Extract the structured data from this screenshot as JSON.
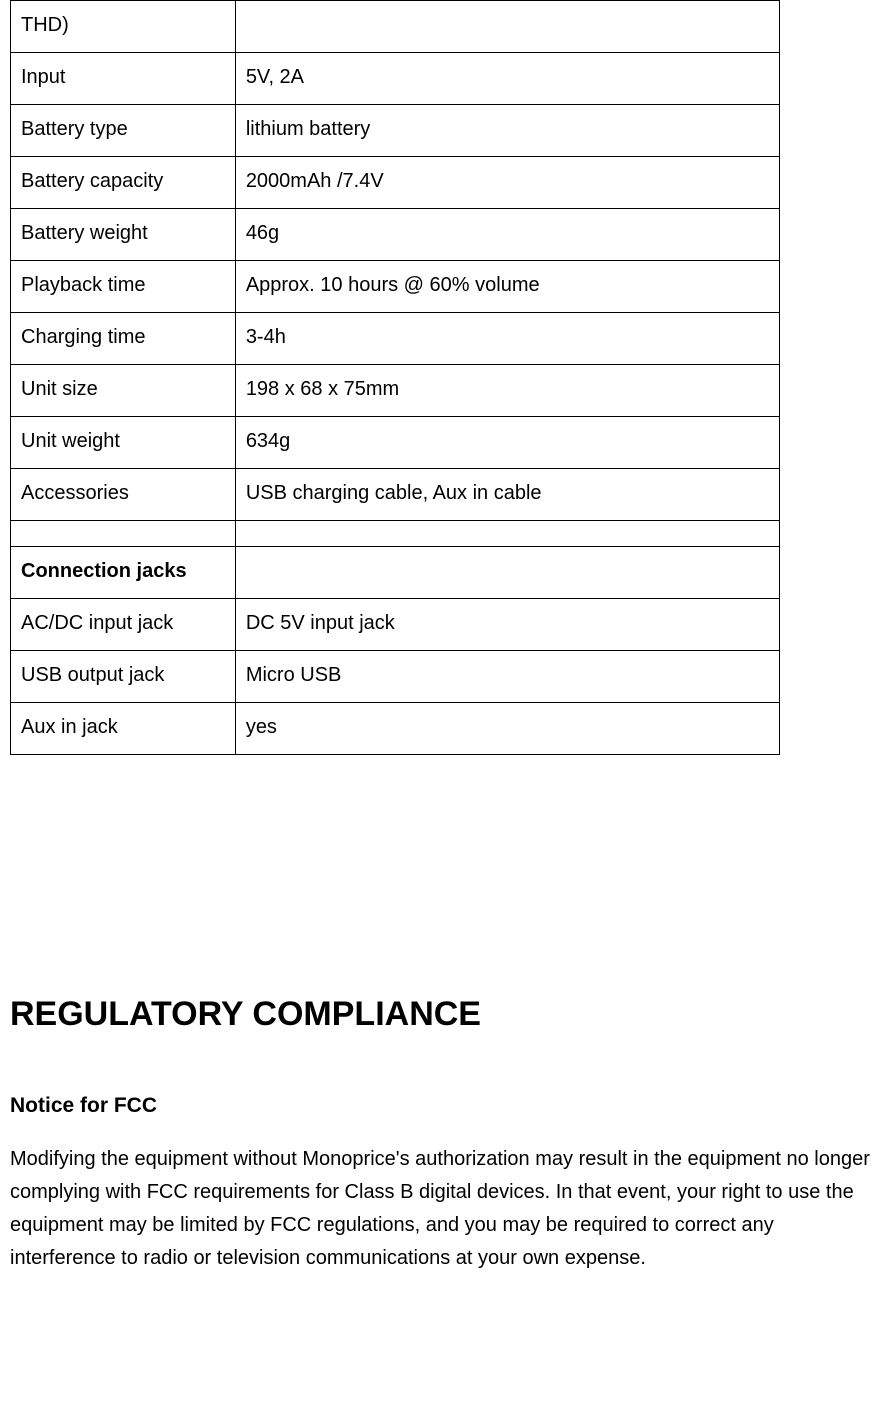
{
  "table": {
    "rows": [
      {
        "label": "THD)",
        "value": "",
        "bold": false
      },
      {
        "label": "Input",
        "value": "5V, 2A",
        "bold": false
      },
      {
        "label": "Battery type",
        "value": "lithium battery",
        "bold": false
      },
      {
        "label": "Battery capacity",
        "value": "2000mAh /7.4V",
        "bold": false
      },
      {
        "label": "Battery weight",
        "value": "46g",
        "bold": false
      },
      {
        "label": "Playback time",
        "value": "Approx. 10 hours @ 60% volume",
        "bold": false
      },
      {
        "label": "Charging time",
        "value": "3-4h",
        "bold": false
      },
      {
        "label": "Unit size",
        "value": "198 x 68 x 75mm",
        "bold": false
      },
      {
        "label": "Unit weight",
        "value": "634g",
        "bold": false
      },
      {
        "label": "Accessories",
        "value": "USB charging cable, Aux in cable",
        "bold": false
      },
      {
        "label": "",
        "value": "",
        "bold": false
      },
      {
        "label": "Connection jacks",
        "value": "",
        "bold": true
      },
      {
        "label": "AC/DC input jack",
        "value": "DC 5V input jack",
        "bold": false
      },
      {
        "label": "USB output jack",
        "value": "Micro USB",
        "bold": false
      },
      {
        "label": "Aux in jack",
        "value": "yes",
        "bold": false
      }
    ]
  },
  "heading": "REGULATORY COMPLIANCE",
  "subheading": "Notice for FCC",
  "paragraph": "Modifying the equipment without Monoprice's authorization may result in the equipment no longer complying with FCC requirements for Class B digital devices. In that event, your right to use the equipment may be limited by FCC regulations, and you may be required to correct any interference to radio or television communications at your own expense."
}
